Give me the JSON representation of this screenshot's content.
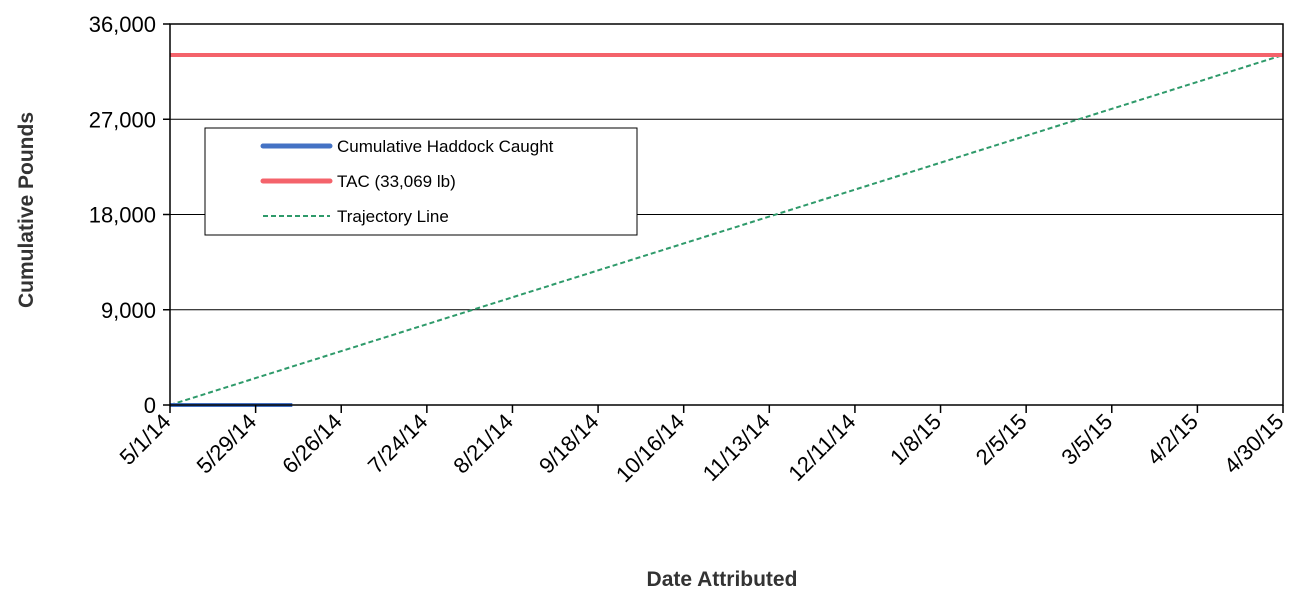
{
  "chart_data": {
    "type": "line",
    "title": "",
    "xlabel": "Date Attributed",
    "ylabel": "Cumulative Pounds",
    "x_ticks": [
      "5/1/14",
      "5/29/14",
      "6/26/14",
      "7/24/14",
      "8/21/14",
      "9/18/14",
      "10/16/14",
      "11/13/14",
      "12/11/14",
      "1/8/15",
      "2/5/15",
      "3/5/15",
      "4/2/15",
      "4/30/15"
    ],
    "x_range": [
      "5/1/14",
      "4/30/15"
    ],
    "y_ticks": [
      "0",
      "9,000",
      "18,000",
      "27,000",
      "36,000"
    ],
    "ylim": [
      0,
      36000
    ],
    "grid": "horizontal",
    "legend_position": "upper-left",
    "series": [
      {
        "name": "Cumulative Haddock Caught",
        "color": "#4472c4",
        "style": "solid",
        "points": [
          {
            "x": "5/1/14",
            "y": 0
          },
          {
            "x": "6/10/14",
            "y": 0
          }
        ]
      },
      {
        "name": "TAC (33,069 lb)",
        "color": "#f4636b",
        "style": "solid",
        "points": [
          {
            "x": "5/1/14",
            "y": 33069
          },
          {
            "x": "4/30/15",
            "y": 33069
          }
        ]
      },
      {
        "name": "Trajectory Line",
        "color": "#2e9a6a",
        "style": "dashed",
        "points": [
          {
            "x": "5/1/14",
            "y": 0
          },
          {
            "x": "4/30/15",
            "y": 33069
          }
        ]
      }
    ]
  }
}
